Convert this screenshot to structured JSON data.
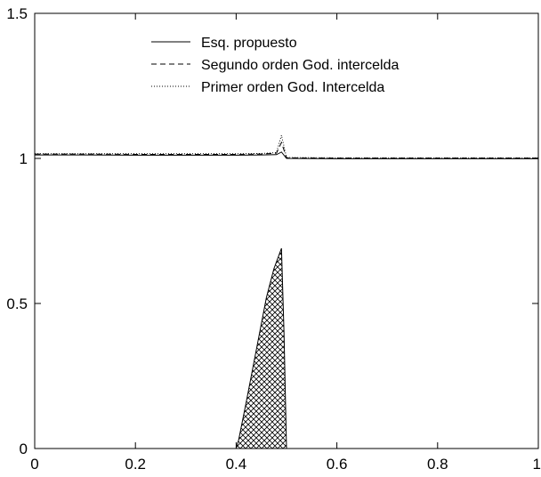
{
  "chart_data": {
    "type": "line",
    "title": "",
    "xlabel": "",
    "ylabel": "",
    "xlim": [
      0,
      1
    ],
    "ylim": [
      0,
      1.5
    ],
    "grid": false,
    "legend_position": "top-center",
    "x_ticks": [
      "0",
      "0.2",
      "0.4",
      "0.6",
      "0.8",
      "1"
    ],
    "x_tick_values": [
      0,
      0.2,
      0.4,
      0.6,
      0.8,
      1
    ],
    "y_ticks": [
      "0",
      "0.5",
      "1",
      "1.5"
    ],
    "y_tick_values": [
      0,
      0.5,
      1,
      1.5
    ],
    "series": [
      {
        "name": "Esq. propuesto",
        "style": "solid",
        "color": "#000000",
        "x": [
          0,
          0.1,
          0.2,
          0.3,
          0.4,
          0.45,
          0.48,
          0.49,
          0.5,
          0.6,
          0.7,
          0.8,
          0.9,
          1.0
        ],
        "y": [
          1.012,
          1.012,
          1.011,
          1.011,
          1.011,
          1.012,
          1.013,
          1.022,
          1.0,
          0.999,
          0.999,
          0.999,
          0.999,
          0.999
        ]
      },
      {
        "name": "Segundo orden  God. intercelda",
        "style": "dashed",
        "color": "#000000",
        "x": [
          0,
          0.1,
          0.2,
          0.3,
          0.4,
          0.45,
          0.48,
          0.49,
          0.5,
          0.6,
          0.7,
          0.8,
          0.9,
          1.0
        ],
        "y": [
          1.015,
          1.015,
          1.014,
          1.014,
          1.014,
          1.015,
          1.018,
          1.055,
          1.002,
          1.001,
          1.001,
          1.001,
          1.001,
          1.001
        ]
      },
      {
        "name": "Primer orden God. Intercelda",
        "style": "dotted",
        "color": "#000000",
        "x": [
          0,
          0.1,
          0.2,
          0.3,
          0.4,
          0.45,
          0.48,
          0.49,
          0.5,
          0.6,
          0.7,
          0.8,
          0.9,
          1.0
        ],
        "y": [
          1.016,
          1.016,
          1.016,
          1.016,
          1.016,
          1.017,
          1.02,
          1.08,
          1.003,
          1.002,
          1.002,
          1.002,
          1.002,
          1.002
        ]
      }
    ],
    "region": {
      "fill": "crosshatch",
      "x": [
        0.0,
        0.4,
        0.405,
        0.42,
        0.44,
        0.46,
        0.475,
        0.49,
        0.495,
        0.5,
        1.0
      ],
      "y": [
        0.0,
        0.0,
        0.03,
        0.16,
        0.34,
        0.52,
        0.62,
        0.69,
        0.4,
        0.0,
        0.0
      ]
    }
  }
}
